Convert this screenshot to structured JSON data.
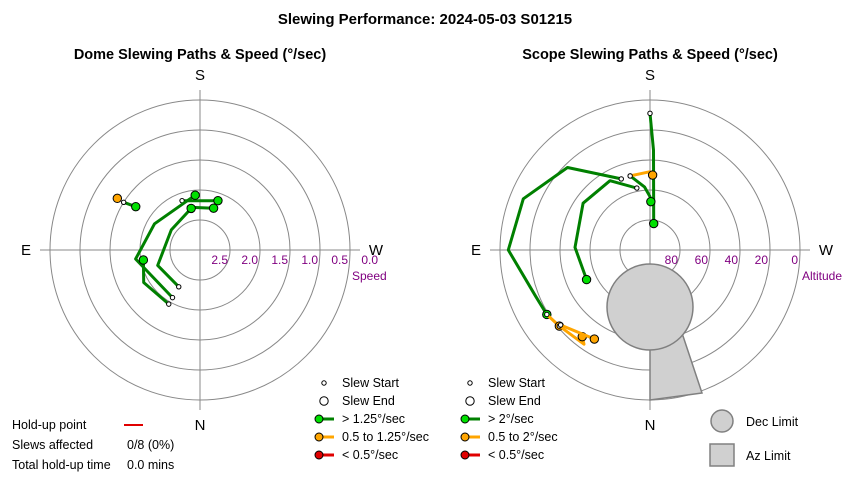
{
  "title": "Slewing Performance: 2024-05-03 S01215",
  "colors": {
    "fast": "#00e000",
    "fast_line": "#008000",
    "medium": "#ffa500",
    "slow": "#e00000",
    "ticks": "#800080",
    "limit_fill": "#d0d0d0",
    "limit_stroke": "#808080",
    "grid": "#888888"
  },
  "chart_data": [
    {
      "type": "polar",
      "title": "Dome Slewing Paths & Speed (°/sec)",
      "directions": {
        "top": "S",
        "bottom": "N",
        "left": "E",
        "right": "W"
      },
      "radial_axis": {
        "label": "Speed",
        "ticks": [
          "2.5",
          "2.0",
          "1.5",
          "1.0",
          "0.5",
          "0.0"
        ],
        "range": [
          3.0,
          0.0
        ]
      },
      "legend": [
        {
          "symbol": "start",
          "label": "Slew Start"
        },
        {
          "symbol": "end",
          "label": "Slew End"
        },
        {
          "symbol": "fast",
          "label": "> 1.25°/sec"
        },
        {
          "symbol": "medium",
          "label": "0.5 to 1.25°/sec"
        },
        {
          "symbol": "slow",
          "label": "< 0.5°/sec"
        }
      ],
      "slews": [
        {
          "speed": "fast",
          "az_deg": [
            -20,
            20
          ],
          "value": 1.95
        },
        {
          "speed": "fast",
          "az_deg": [
            -14,
            18
          ],
          "value": 2.12
        },
        {
          "speed": "fast",
          "az_deg": [
            -150,
            -98,
            -60,
            -5
          ],
          "value": [
            1.9,
            1.7,
            1.95,
            1.9
          ]
        },
        {
          "speed": "fast",
          "az_deg": [
            -150,
            -110,
            -55,
            -12
          ],
          "value": [
            2.15,
            2.1,
            2.3,
            2.15
          ]
        },
        {
          "speed": "fast",
          "az_deg": [
            -150,
            -120,
            -100
          ],
          "value": [
            1.75,
            1.7,
            1.85
          ]
        },
        {
          "speed": "fast",
          "az_deg": [
            -58,
            -56
          ],
          "value": [
            1.2,
            1.45
          ]
        },
        {
          "speed": "medium",
          "az_deg": [
            -58,
            -58
          ],
          "value": 1.05
        }
      ]
    },
    {
      "type": "polar",
      "title": "Scope Slewing Paths & Speed (°/sec)",
      "directions": {
        "top": "S",
        "bottom": "N",
        "left": "E",
        "right": "W"
      },
      "radial_axis": {
        "label": "Altitude",
        "ticks": [
          "80",
          "60",
          "40",
          "20",
          "0"
        ],
        "range": [
          90,
          0
        ]
      },
      "legend": [
        {
          "symbol": "start",
          "label": "Slew Start"
        },
        {
          "symbol": "end",
          "label": "Slew End"
        },
        {
          "symbol": "fast",
          "label": "> 2°/sec"
        },
        {
          "symbol": "medium",
          "label": "0.5 to 2°/sec"
        },
        {
          "symbol": "slow",
          "label": "< 0.5°/sec"
        }
      ],
      "limits": [
        {
          "symbol": "dec",
          "label": "Dec Limit"
        },
        {
          "symbol": "az",
          "label": "Az Limit"
        }
      ],
      "slews": [
        {
          "speed": "fast",
          "az_deg": [
            0,
            2,
            8
          ],
          "alt": [
            8,
            30,
            74
          ]
        },
        {
          "speed": "fast",
          "az_deg": [
            -22,
            -45,
            -68,
            -90,
            -112,
            -122
          ],
          "alt": [
            44,
            20,
            8,
            5,
            16,
            17
          ]
        },
        {
          "speed": "fast",
          "az_deg": [
            -15,
            -5,
            0,
            1
          ],
          "alt": [
            44,
            52,
            58,
            61
          ]
        },
        {
          "speed": "fast",
          "az_deg": [
            -12,
            -30,
            -55,
            -88,
            -115
          ],
          "alt": [
            52,
            42,
            41,
            45,
            48
          ]
        },
        {
          "speed": "medium",
          "az_deg": [
            -15,
            0,
            2
          ],
          "alt": [
            44,
            43,
            45
          ]
        },
        {
          "speed": "medium",
          "az_deg": [
            -122,
            -130
          ],
          "alt": [
            17,
            19
          ]
        },
        {
          "speed": "medium",
          "az_deg": [
            -130,
            -145,
            -142
          ],
          "alt": [
            19,
            21,
            24
          ]
        },
        {
          "speed": "medium",
          "az_deg": [
            -130,
            -148
          ],
          "alt": [
            20,
            27
          ]
        }
      ]
    }
  ],
  "holdup": {
    "point_label": "Hold-up point",
    "slews_label": "Slews affected",
    "slews_value": "0/8 (0%)",
    "total_label": "Total hold-up time",
    "total_value": "0.0 mins"
  }
}
